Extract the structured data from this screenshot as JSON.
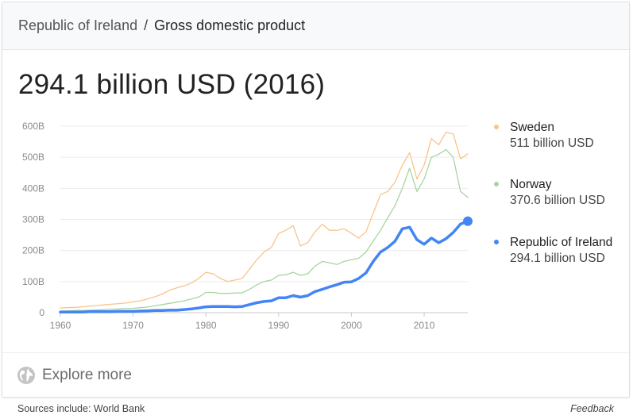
{
  "header": {
    "breadcrumb_link": "Republic of Ireland",
    "separator": "/",
    "current": "Gross domestic product"
  },
  "headline": "294.1 billion USD (2016)",
  "legend": [
    {
      "name": "Sweden",
      "value": "511 billion USD",
      "color": "#f7c58b"
    },
    {
      "name": "Norway",
      "value": "370.6 billion USD",
      "color": "#a8d5a0"
    },
    {
      "name": "Republic of Ireland",
      "value": "294.1 billion USD",
      "color": "#4285f4"
    }
  ],
  "chart_data": {
    "type": "line",
    "xlim": [
      1960,
      2016
    ],
    "ylim": [
      0,
      600
    ],
    "x_ticks": [
      "1960",
      "1970",
      "1980",
      "1990",
      "2000",
      "2010"
    ],
    "y_ticks": [
      "0",
      "100B",
      "200B",
      "300B",
      "400B",
      "500B",
      "600B"
    ],
    "grid": true,
    "legend_position": "right",
    "x": [
      1960,
      1961,
      1962,
      1963,
      1964,
      1965,
      1966,
      1967,
      1968,
      1969,
      1970,
      1971,
      1972,
      1973,
      1974,
      1975,
      1976,
      1977,
      1978,
      1979,
      1980,
      1981,
      1982,
      1983,
      1984,
      1985,
      1986,
      1987,
      1988,
      1989,
      1990,
      1991,
      1992,
      1993,
      1994,
      1995,
      1996,
      1997,
      1998,
      1999,
      2000,
      2001,
      2002,
      2003,
      2004,
      2005,
      2006,
      2007,
      2008,
      2009,
      2010,
      2011,
      2012,
      2013,
      2014,
      2015,
      2016
    ],
    "series": [
      {
        "name": "Sweden",
        "color": "#f7c58b",
        "width": 1.3,
        "values": [
          15,
          16,
          17,
          19,
          21,
          23,
          25,
          27,
          29,
          31,
          35,
          38,
          44,
          51,
          60,
          72,
          80,
          86,
          95,
          110,
          130,
          125,
          110,
          100,
          105,
          110,
          140,
          170,
          195,
          210,
          255,
          265,
          280,
          215,
          225,
          260,
          285,
          265,
          265,
          270,
          255,
          240,
          260,
          320,
          380,
          390,
          420,
          475,
          515,
          430,
          475,
          560,
          540,
          580,
          575,
          495,
          511
        ]
      },
      {
        "name": "Norway",
        "color": "#a8d5a0",
        "width": 1.3,
        "values": [
          5,
          6,
          7,
          7,
          8,
          9,
          10,
          11,
          12,
          13,
          14,
          16,
          18,
          22,
          26,
          30,
          34,
          38,
          44,
          50,
          65,
          65,
          62,
          62,
          63,
          64,
          75,
          90,
          100,
          105,
          120,
          122,
          130,
          120,
          125,
          150,
          165,
          160,
          155,
          165,
          170,
          175,
          195,
          230,
          265,
          305,
          345,
          400,
          465,
          390,
          430,
          500,
          510,
          525,
          500,
          390,
          370.6
        ]
      },
      {
        "name": "Republic of Ireland",
        "color": "#4285f4",
        "width": 3.5,
        "values": [
          2,
          2,
          2,
          2,
          3,
          3,
          3,
          3,
          4,
          4,
          4,
          5,
          6,
          7,
          7,
          8,
          8,
          10,
          12,
          15,
          19,
          20,
          20,
          20,
          19,
          20,
          26,
          32,
          36,
          38,
          48,
          48,
          55,
          50,
          55,
          68,
          75,
          83,
          90,
          98,
          99,
          110,
          128,
          165,
          195,
          210,
          230,
          270,
          275,
          235,
          220,
          240,
          225,
          238,
          258,
          285,
          294.1
        ]
      }
    ]
  },
  "footer": {
    "explore_label": "Explore more",
    "sources": "Sources include: World Bank",
    "feedback": "Feedback"
  }
}
